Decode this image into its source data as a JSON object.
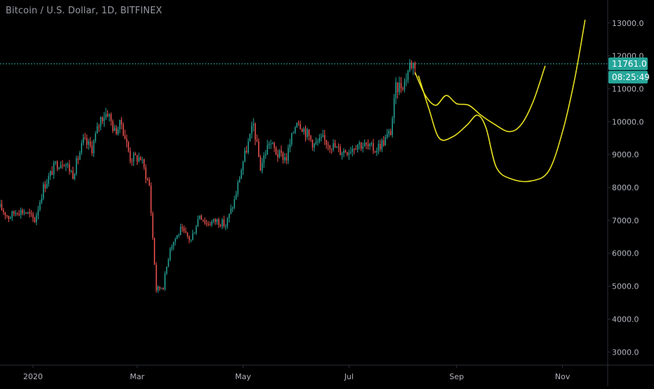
{
  "header": {
    "title": "Bitcoin / U.S. Dollar, 1D, BITFINEX"
  },
  "colors": {
    "background": "#000000",
    "up_candle": "#26a69a",
    "down_candle": "#ef5350",
    "price_line": "#26a69a",
    "price_tag": "#26a69a",
    "drawing": "#e8e020",
    "axis_text": "#b2b5be",
    "axis_line": "#2a2e39"
  },
  "chart_data": {
    "type": "candlestick",
    "title": "Bitcoin / U.S. Dollar, 1D, BITFINEX",
    "y_axis_position": "right",
    "y_ticks": [
      3000,
      4000,
      5000,
      6000,
      7000,
      8000,
      9000,
      10000,
      11000,
      12000,
      13000
    ],
    "y_tick_labels": [
      "3000.0",
      "4000.0",
      "5000.0",
      "6000.0",
      "7000.0",
      "8000.0",
      "9000.0",
      "10000.0",
      "11000.0",
      "12000.0",
      "13000.0"
    ],
    "ylim": [
      2600,
      13700
    ],
    "x_ticks": [
      {
        "label": "2020",
        "date": "2020-01-01"
      },
      {
        "label": "Mar",
        "date": "2020-03-01"
      },
      {
        "label": "May",
        "date": "2020-05-01"
      },
      {
        "label": "Jul",
        "date": "2020-07-01"
      },
      {
        "label": "Sep",
        "date": "2020-09-01"
      },
      {
        "label": "Nov",
        "date": "2020-11-01"
      }
    ],
    "xlim": [
      "2019-12-13",
      "2020-11-27"
    ],
    "current_price": 11761.0,
    "current_price_label": "11761.0",
    "countdown_label": "08:25:49",
    "grid": false,
    "price_path": [
      [
        "2019-12-13",
        7400
      ],
      [
        "2019-12-18",
        7100
      ],
      [
        "2019-12-23",
        7300
      ],
      [
        "2019-12-28",
        7250
      ],
      [
        "2020-01-02",
        7000
      ],
      [
        "2020-01-07",
        8000
      ],
      [
        "2020-01-14",
        8700
      ],
      [
        "2020-01-19",
        8800
      ],
      [
        "2020-01-24",
        8400
      ],
      [
        "2020-01-30",
        9400
      ],
      [
        "2020-02-04",
        9200
      ],
      [
        "2020-02-09",
        10100
      ],
      [
        "2020-02-13",
        10300
      ],
      [
        "2020-02-17",
        9700
      ],
      [
        "2020-02-21",
        9950
      ],
      [
        "2020-02-26",
        8900
      ],
      [
        "2020-03-03",
        8900
      ],
      [
        "2020-03-08",
        8050
      ],
      [
        "2020-03-12",
        4900
      ],
      [
        "2020-03-16",
        5000
      ],
      [
        "2020-03-20",
        6200
      ],
      [
        "2020-03-26",
        6700
      ],
      [
        "2020-04-01",
        6400
      ],
      [
        "2020-04-06",
        7200
      ],
      [
        "2020-04-10",
        6900
      ],
      [
        "2020-04-16",
        7000
      ],
      [
        "2020-04-21",
        6850
      ],
      [
        "2020-04-26",
        7600
      ],
      [
        "2020-05-01",
        8800
      ],
      [
        "2020-05-07",
        9900
      ],
      [
        "2020-05-11",
        8600
      ],
      [
        "2020-05-16",
        9400
      ],
      [
        "2020-05-21",
        9000
      ],
      [
        "2020-05-26",
        8900
      ],
      [
        "2020-06-01",
        10100
      ],
      [
        "2020-06-06",
        9700
      ],
      [
        "2020-06-11",
        9300
      ],
      [
        "2020-06-16",
        9450
      ],
      [
        "2020-06-21",
        9300
      ],
      [
        "2020-06-26",
        9100
      ],
      [
        "2020-07-01",
        9150
      ],
      [
        "2020-07-06",
        9350
      ],
      [
        "2020-07-11",
        9250
      ],
      [
        "2020-07-16",
        9150
      ],
      [
        "2020-07-21",
        9400
      ],
      [
        "2020-07-25",
        9700
      ],
      [
        "2020-07-28",
        11000
      ],
      [
        "2020-08-02",
        11200
      ],
      [
        "2020-08-05",
        11750
      ],
      [
        "2020-08-08",
        11761
      ]
    ],
    "drawings": [
      {
        "name": "inner-projection",
        "points": [
          [
            "2020-08-08",
            11500
          ],
          [
            "2020-08-14",
            10800
          ],
          [
            "2020-08-20",
            10500
          ],
          [
            "2020-08-26",
            10800
          ],
          [
            "2020-09-01",
            10550
          ],
          [
            "2020-09-08",
            10500
          ],
          [
            "2020-09-15",
            10200
          ],
          [
            "2020-09-22",
            9950
          ],
          [
            "2020-10-01",
            9700
          ],
          [
            "2020-10-08",
            9900
          ],
          [
            "2020-10-15",
            10600
          ],
          [
            "2020-10-22",
            11700
          ]
        ]
      },
      {
        "name": "outer-projection",
        "points": [
          [
            "2020-08-10",
            11400
          ],
          [
            "2020-08-16",
            10400
          ],
          [
            "2020-08-22",
            9500
          ],
          [
            "2020-08-30",
            9550
          ],
          [
            "2020-09-07",
            9900
          ],
          [
            "2020-09-13",
            10200
          ],
          [
            "2020-09-18",
            9800
          ],
          [
            "2020-09-24",
            8600
          ],
          [
            "2020-10-03",
            8250
          ],
          [
            "2020-10-14",
            8200
          ],
          [
            "2020-10-24",
            8500
          ],
          [
            "2020-11-01",
            9700
          ],
          [
            "2020-11-08",
            11300
          ],
          [
            "2020-11-14",
            13100
          ]
        ]
      }
    ]
  }
}
